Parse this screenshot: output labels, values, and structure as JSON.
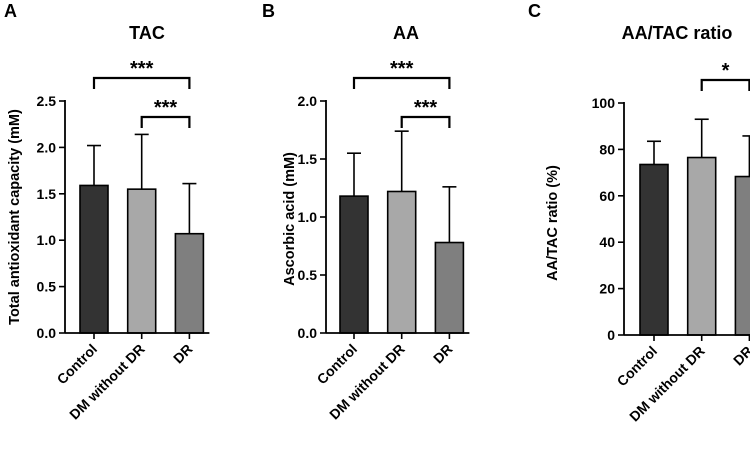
{
  "chart_data": [
    {
      "panel_label": "A",
      "type": "bar",
      "title": "TAC",
      "ylabel": "Total antioxidant capacity (mM)",
      "xlabel": "",
      "ylim": [
        0,
        2.5
      ],
      "yticks": [
        "0.0",
        "0.5",
        "1.0",
        "1.5",
        "2.0",
        "2.5"
      ],
      "categories": [
        "Control",
        "DM without DR",
        "DR"
      ],
      "values": [
        1.59,
        1.55,
        1.07
      ],
      "errors": [
        0.43,
        0.59,
        0.54
      ],
      "significance": [
        {
          "from": 0,
          "to": 2,
          "label": "***"
        },
        {
          "from": 1,
          "to": 2,
          "label": "***"
        }
      ]
    },
    {
      "panel_label": "B",
      "type": "bar",
      "title": "AA",
      "ylabel": "Ascorbic acid (mM)",
      "xlabel": "",
      "ylim": [
        0,
        2.0
      ],
      "yticks": [
        "0.0",
        "0.5",
        "1.0",
        "1.5",
        "2.0"
      ],
      "categories": [
        "Control",
        "DM without DR",
        "DR"
      ],
      "values": [
        1.18,
        1.22,
        0.78
      ],
      "errors": [
        0.37,
        0.52,
        0.48
      ],
      "significance": [
        {
          "from": 0,
          "to": 2,
          "label": "***"
        },
        {
          "from": 1,
          "to": 2,
          "label": "***"
        }
      ]
    },
    {
      "panel_label": "C",
      "type": "bar",
      "title": "AA/TAC ratio",
      "ylabel": "AA/TAC ratio (%)",
      "xlabel": "",
      "ylim": [
        0,
        100
      ],
      "yticks": [
        "0",
        "20",
        "40",
        "60",
        "80",
        "100"
      ],
      "categories": [
        "Control",
        "DM without DR",
        "DR"
      ],
      "values": [
        73.5,
        76.5,
        68.3
      ],
      "errors": [
        10,
        16.5,
        17.5
      ],
      "significance": [
        {
          "from": 1,
          "to": 2,
          "label": "*"
        }
      ]
    }
  ],
  "colors": {
    "bars": [
      "#333333",
      "#a8a8a8",
      "#7f7f7f"
    ],
    "axis": "#000000"
  }
}
